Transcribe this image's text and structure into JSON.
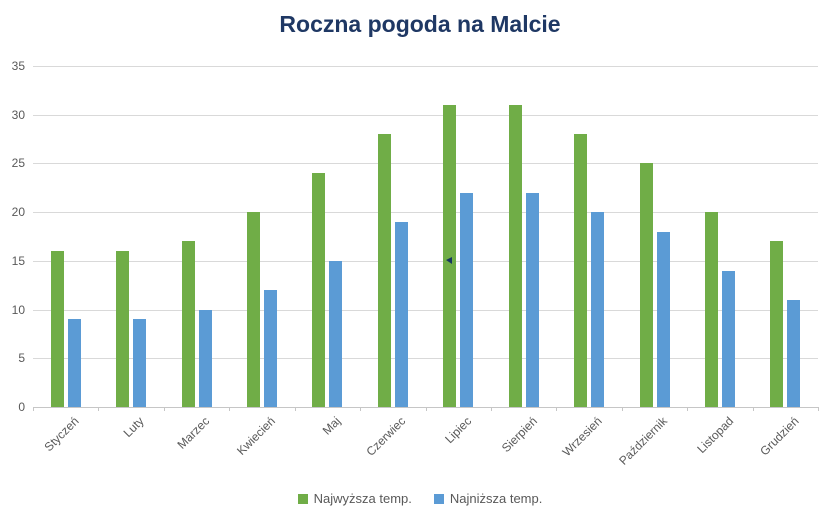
{
  "title": "Roczna pogoda na Malcie",
  "colors": {
    "title": "#1F3864",
    "axis_text": "#595959",
    "gridline": "#D9D9D9",
    "axis_line": "#C6C6C6",
    "background": "#FFFFFF",
    "cursor": "#17375E"
  },
  "chart_data": {
    "type": "bar",
    "title": "Roczna pogoda na Malcie",
    "xlabel": "",
    "ylabel": "",
    "categories": [
      "Styczeń",
      "Luty",
      "Marzec",
      "Kwiecień",
      "Maj",
      "Czerwiec",
      "Lipiec",
      "Sierpień",
      "Wrzesień",
      "Październik",
      "Listopad",
      "Grudzień"
    ],
    "series": [
      {
        "id": "high",
        "name": "Najwyższa temp.",
        "color": "#70AD47",
        "values": [
          16,
          16,
          17,
          20,
          24,
          28,
          31,
          31,
          28,
          25,
          20,
          17
        ]
      },
      {
        "id": "low",
        "name": "Najniższa temp.",
        "color": "#5B9BD5",
        "values": [
          9,
          9,
          10,
          12,
          15,
          19,
          22,
          22,
          20,
          18,
          14,
          11
        ]
      }
    ],
    "ylim": [
      0,
      35
    ],
    "ytick_step": 5,
    "yticks": [
      0,
      5,
      10,
      15,
      20,
      25,
      30,
      35
    ],
    "grid": true,
    "legend_position": "bottom"
  }
}
